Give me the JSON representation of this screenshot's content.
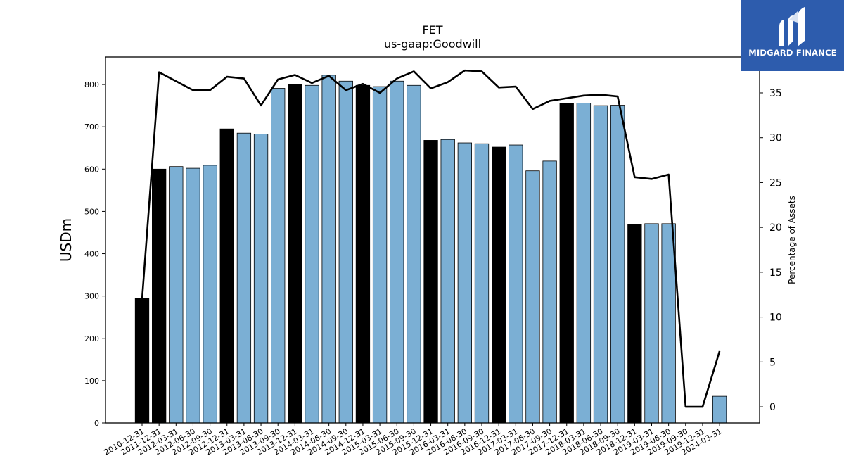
{
  "brand": {
    "name": "MIDGARD FINANCE",
    "color": "#2d5cad",
    "icon": "midgard-logo-icon"
  },
  "chart_data": {
    "type": "bar",
    "title": "FET",
    "subtitle": "us-gaap:Goodwill",
    "ylabel": "USDm",
    "y2label": "Percentage of Assets",
    "ylim": [
      0,
      865
    ],
    "y2lim": [
      -1.8,
      39
    ],
    "yticks": [
      0,
      100,
      200,
      300,
      400,
      500,
      600,
      700,
      800
    ],
    "y2ticks": [
      0,
      5,
      10,
      15,
      20,
      25,
      30,
      35
    ],
    "colors": {
      "annual": "#000000",
      "quarterly": "#7bafd4",
      "line": "#000000"
    },
    "categories": [
      "2010-12-31",
      "2011-12-31",
      "2012-03-31",
      "2012-06-30",
      "2012-09-30",
      "2012-12-31",
      "2013-03-31",
      "2013-06-30",
      "2013-09-30",
      "2013-12-31",
      "2014-03-31",
      "2014-06-30",
      "2014-09-30",
      "2014-12-31",
      "2015-03-31",
      "2015-06-30",
      "2015-09-30",
      "2015-12-31",
      "2016-03-31",
      "2016-06-30",
      "2016-09-30",
      "2016-12-31",
      "2017-03-31",
      "2017-06-30",
      "2017-09-30",
      "2017-12-31",
      "2018-03-31",
      "2018-06-30",
      "2018-09-30",
      "2018-12-31",
      "2019-03-31",
      "2019-06-30",
      "2019-09-30",
      "2019-12-31",
      "2024-03-31"
    ],
    "bar_values": [
      295,
      600,
      606,
      602,
      609,
      695,
      685,
      683,
      791,
      801,
      798,
      822,
      808,
      798,
      795,
      808,
      798,
      668,
      670,
      662,
      660,
      652,
      657,
      596,
      619,
      755,
      756,
      750,
      751,
      469,
      471,
      471,
      null,
      null,
      63
    ],
    "bar_kind": [
      "annual",
      "annual",
      "quarterly",
      "quarterly",
      "quarterly",
      "annual",
      "quarterly",
      "quarterly",
      "quarterly",
      "annual",
      "quarterly",
      "quarterly",
      "quarterly",
      "annual",
      "quarterly",
      "quarterly",
      "quarterly",
      "annual",
      "quarterly",
      "quarterly",
      "quarterly",
      "annual",
      "quarterly",
      "quarterly",
      "quarterly",
      "annual",
      "quarterly",
      "quarterly",
      "quarterly",
      "annual",
      "quarterly",
      "quarterly",
      "quarterly",
      "annual",
      "quarterly"
    ],
    "pct_assets": [
      12.0,
      37.3,
      36.3,
      35.3,
      35.3,
      36.8,
      36.6,
      33.6,
      36.5,
      37.0,
      36.1,
      36.9,
      35.3,
      36.0,
      35.0,
      36.6,
      37.4,
      35.5,
      36.2,
      37.5,
      37.4,
      35.6,
      35.7,
      33.2,
      34.1,
      34.4,
      34.7,
      34.8,
      34.6,
      25.6,
      25.4,
      25.9,
      0.0,
      0.0,
      6.2
    ]
  }
}
